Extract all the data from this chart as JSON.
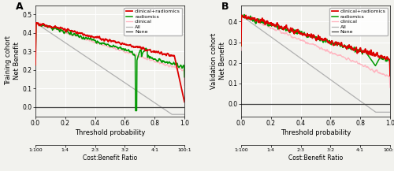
{
  "panel_A": {
    "label": "A",
    "ylabel": "Training cohort\nNet Benefit",
    "ylim": [
      -0.05,
      0.55
    ],
    "yticks": [
      0.0,
      0.1,
      0.2,
      0.3,
      0.4,
      0.5
    ],
    "all_line_start": 0.455
  },
  "panel_B": {
    "label": "B",
    "ylabel": "Validation cohort\nNet Benefit",
    "ylim": [
      -0.06,
      0.48
    ],
    "yticks": [
      0.0,
      0.1,
      0.2,
      0.3,
      0.4
    ],
    "all_line_start": 0.43
  },
  "xlabel": "Threshold probability",
  "xlabel2": "Cost:Benefit Ratio",
  "x2ticks_pos": [
    0.0,
    0.2,
    0.4,
    0.6,
    0.8,
    1.0
  ],
  "x2ticks_labels": [
    "1:100",
    "1:4",
    "2:3",
    "3:2",
    "4:1",
    "100:1"
  ],
  "legend_entries": [
    "clinical+radiomics",
    "radiomics",
    "clinical",
    "All",
    "None"
  ],
  "colors": {
    "combined": "#dd0000",
    "radiomics": "#009900",
    "clinical": "#ffb6c1",
    "all": "#b0b0b0",
    "none": "#444444"
  },
  "bg_color": "#f2f2ee",
  "grid_color": "#e8e8e8"
}
